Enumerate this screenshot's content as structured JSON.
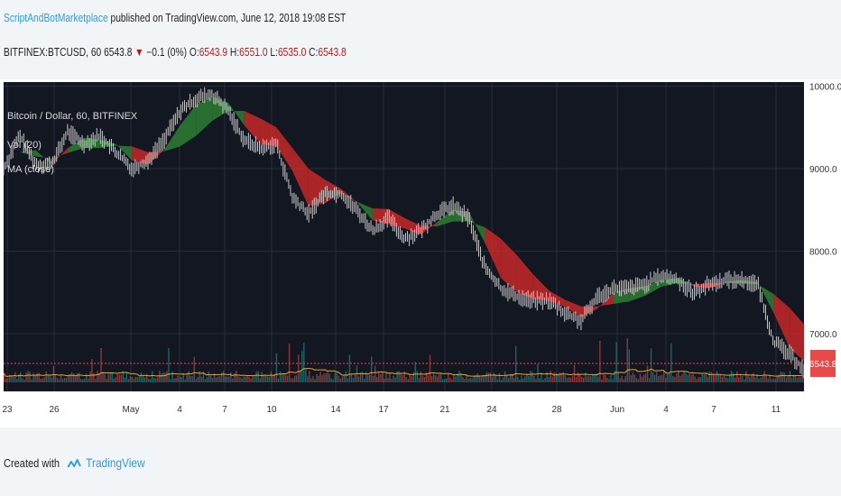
{
  "header": {
    "author": "ScriptAndBotMarketplace",
    "published_text": "published on TradingView.com, June 12, 2018 19:08 EST",
    "symbol": "BITFINEX:BTCUSD, 60",
    "last": "6543.8",
    "change": "−0.1 (0%)",
    "o_label": "O:",
    "o": "6543.9",
    "h_label": "H:",
    "h": "6551.0",
    "l_label": "L:",
    "l": "6535.0",
    "c_label": "C:",
    "c": "6543.8"
  },
  "legend": {
    "title": "Bitcoin / Dollar, 60, BITFINEX",
    "vol": "Vol (20)",
    "ma": "MA (close)"
  },
  "price_label": "6543.8",
  "footer": {
    "created_with": "Created with",
    "brand": "TradingView"
  },
  "colors": {
    "background": "#131722",
    "grid": "#2a2e39",
    "candle": "#c9c9c9",
    "cloud_up": "#2e7d32",
    "cloud_down": "#c62828",
    "volume_up": "#26a69a",
    "volume_down": "#ef5350",
    "vol_ma": "#f0a030",
    "price_tag": "#e84a4a",
    "brand": "#2e9be6"
  },
  "chart_data": {
    "type": "line",
    "title": "Bitcoin / Dollar, 60, BITFINEX",
    "x_ticks": [
      "23",
      "26",
      "May",
      "4",
      "7",
      "10",
      "14",
      "17",
      "21",
      "24",
      "28",
      "Jun",
      "4",
      "7",
      "11"
    ],
    "y_ticks": [
      10000.0,
      9000.0,
      8000.0,
      7000.0
    ],
    "y_tick_labels": [
      "10000.0",
      "9000.0",
      "8000.0",
      "7000.0"
    ],
    "ylim": [
      6300,
      10050
    ],
    "series": [
      {
        "x": [
          "Apr 23",
          "Apr 24",
          "Apr 25",
          "Apr 26",
          "Apr 27",
          "Apr 28",
          "Apr 29",
          "Apr 30",
          "May 1",
          "May 2",
          "May 3",
          "May 4",
          "May 5",
          "May 6",
          "May 7",
          "May 8",
          "May 9",
          "May 10",
          "May 11",
          "May 12",
          "May 13",
          "May 14",
          "May 15",
          "May 16",
          "May 17",
          "May 18",
          "May 19",
          "May 20",
          "May 21",
          "May 22",
          "May 23",
          "May 24",
          "May 25",
          "May 26",
          "May 27",
          "May 28",
          "May 29",
          "May 30",
          "May 31",
          "Jun 1",
          "Jun 2",
          "Jun 3",
          "Jun 4",
          "Jun 5",
          "Jun 6",
          "Jun 7",
          "Jun 8",
          "Jun 9",
          "Jun 10",
          "Jun 11",
          "Jun 12"
        ],
        "values": [
          9000,
          9400,
          9050,
          9050,
          9450,
          9300,
          9400,
          9200,
          9000,
          9100,
          9350,
          9700,
          9850,
          9900,
          9700,
          9350,
          9250,
          9300,
          8650,
          8450,
          8700,
          8700,
          8500,
          8250,
          8400,
          8150,
          8250,
          8450,
          8550,
          8400,
          7800,
          7550,
          7450,
          7400,
          7400,
          7250,
          7150,
          7450,
          7550,
          7550,
          7600,
          7700,
          7650,
          7500,
          7600,
          7650,
          7650,
          7600,
          6900,
          6750,
          6543.8
        ]
      }
    ],
    "volume": {
      "name": "Vol (20)",
      "ma_name": "MA (close)"
    },
    "last_price": 6543.8,
    "grid": true
  }
}
